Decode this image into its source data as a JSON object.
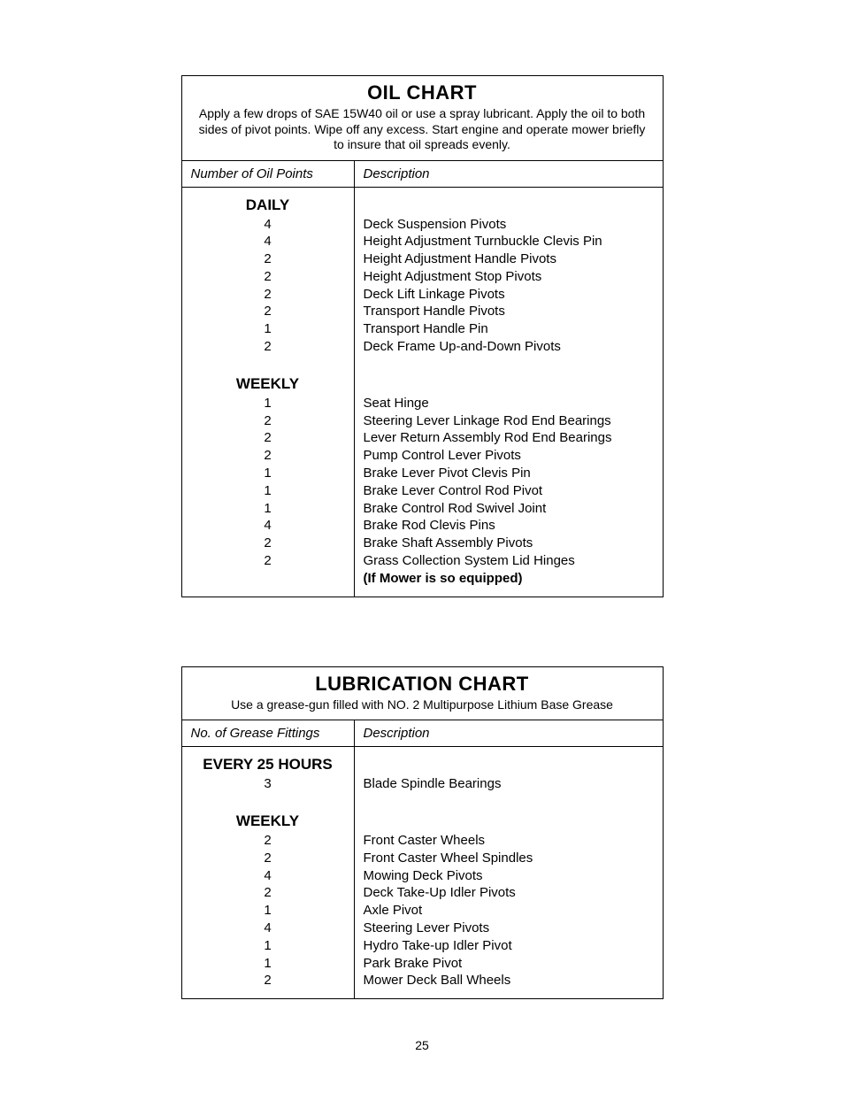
{
  "page_number": "25",
  "oil_chart": {
    "title": "OIL CHART",
    "subtitle": "Apply a few drops of SAE 15W40 oil or use a spray lubricant. Apply the oil to both sides of pivot points. Wipe off any excess. Start engine and operate mower briefly to insure that oil spreads evenly.",
    "col_left": "Number of Oil Points",
    "col_right": "Description",
    "sections": [
      {
        "title": "DAILY",
        "rows": [
          {
            "n": "4",
            "d": "Deck Suspension Pivots"
          },
          {
            "n": "4",
            "d": "Height Adjustment Turnbuckle Clevis Pin"
          },
          {
            "n": "2",
            "d": "Height Adjustment Handle Pivots"
          },
          {
            "n": "2",
            "d": "Height Adjustment Stop Pivots"
          },
          {
            "n": "2",
            "d": "Deck Lift Linkage Pivots"
          },
          {
            "n": "2",
            "d": "Transport Handle Pivots"
          },
          {
            "n": "1",
            "d": "Transport Handle Pin"
          },
          {
            "n": "2",
            "d": "Deck Frame Up-and-Down Pivots"
          }
        ]
      },
      {
        "title": "WEEKLY",
        "rows": [
          {
            "n": "1",
            "d": "Seat Hinge"
          },
          {
            "n": "2",
            "d": "Steering Lever Linkage Rod End Bearings"
          },
          {
            "n": "2",
            "d": "Lever Return Assembly Rod End Bearings"
          },
          {
            "n": "2",
            "d": "Pump Control Lever Pivots"
          },
          {
            "n": "1",
            "d": "Brake Lever Pivot Clevis Pin"
          },
          {
            "n": "1",
            "d": "Brake Lever Control Rod Pivot"
          },
          {
            "n": "1",
            "d": "Brake Control Rod Swivel Joint"
          },
          {
            "n": "4",
            "d": "Brake Rod Clevis Pins"
          },
          {
            "n": "2",
            "d": "Brake Shaft Assembly Pivots"
          },
          {
            "n": "2",
            "d": "Grass Collection System Lid Hinges"
          }
        ],
        "footer_bold": "(If Mower is so equipped)"
      }
    ]
  },
  "lube_chart": {
    "title": "LUBRICATION CHART",
    "subtitle": "Use a grease-gun filled with NO. 2 Multipurpose Lithium Base Grease",
    "col_left": "No. of Grease Fittings",
    "col_right": "Description",
    "sections": [
      {
        "title": "EVERY 25 HOURS",
        "rows": [
          {
            "n": "3",
            "d": "Blade Spindle Bearings"
          }
        ]
      },
      {
        "title": "WEEKLY",
        "rows": [
          {
            "n": "2",
            "d": "Front Caster Wheels"
          },
          {
            "n": "2",
            "d": "Front Caster Wheel Spindles"
          },
          {
            "n": "4",
            "d": "Mowing Deck Pivots"
          },
          {
            "n": "2",
            "d": "Deck Take-Up Idler Pivots"
          },
          {
            "n": "1",
            "d": "Axle Pivot"
          },
          {
            "n": "4",
            "d": "Steering Lever Pivots"
          },
          {
            "n": "1",
            "d": "Hydro Take-up Idler Pivot"
          },
          {
            "n": "1",
            "d": "Park Brake Pivot"
          },
          {
            "n": "2",
            "d": "Mower Deck Ball Wheels"
          }
        ]
      }
    ]
  }
}
